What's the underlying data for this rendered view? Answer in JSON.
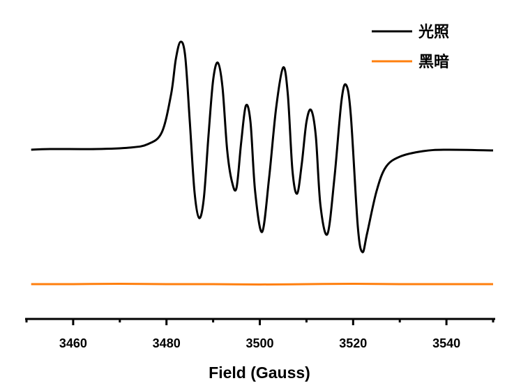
{
  "chart_data": {
    "type": "line",
    "title": "",
    "xlabel": "Field (Gauss)",
    "ylabel": "",
    "xlim": [
      3450,
      3550
    ],
    "ylim": [
      -243,
      215
    ],
    "xticks": [
      3460,
      3480,
      3500,
      3520,
      3540
    ],
    "xtick_labels": [
      "3460",
      "3480",
      "3500",
      "3520",
      "3540"
    ],
    "minor_xticks": [
      3450,
      3470,
      3490,
      3510,
      3530,
      3550
    ],
    "grid": false,
    "legend_position": "top-right",
    "series": [
      {
        "name": "光照",
        "color": "#000000",
        "points": [
          [
            3451,
            0
          ],
          [
            3455,
            1
          ],
          [
            3465,
            1
          ],
          [
            3472,
            3
          ],
          [
            3476,
            8
          ],
          [
            3479,
            25
          ],
          [
            3481,
            80
          ],
          [
            3482,
            130
          ],
          [
            3483,
            155
          ],
          [
            3484,
            135
          ],
          [
            3485,
            40
          ],
          [
            3486,
            -60
          ],
          [
            3487,
            -98
          ],
          [
            3488,
            -70
          ],
          [
            3489,
            20
          ],
          [
            3490,
            100
          ],
          [
            3491,
            125
          ],
          [
            3492,
            90
          ],
          [
            3493,
            0
          ],
          [
            3494,
            -45
          ],
          [
            3495,
            -55
          ],
          [
            3496,
            10
          ],
          [
            3497,
            63
          ],
          [
            3498,
            40
          ],
          [
            3499,
            -60
          ],
          [
            3500.5,
            -118
          ],
          [
            3502,
            -40
          ],
          [
            3503.5,
            60
          ],
          [
            3505,
            118
          ],
          [
            3506,
            80
          ],
          [
            3507,
            -30
          ],
          [
            3508,
            -63
          ],
          [
            3509,
            -20
          ],
          [
            3510,
            40
          ],
          [
            3511,
            57
          ],
          [
            3512,
            20
          ],
          [
            3513,
            -80
          ],
          [
            3514.5,
            -121
          ],
          [
            3516,
            -40
          ],
          [
            3517.5,
            70
          ],
          [
            3518.5,
            93
          ],
          [
            3519.5,
            50
          ],
          [
            3521,
            -110
          ],
          [
            3522,
            -147
          ],
          [
            3523,
            -120
          ],
          [
            3525,
            -60
          ],
          [
            3527,
            -25
          ],
          [
            3530,
            -10
          ],
          [
            3535,
            -2
          ],
          [
            3540,
            0
          ],
          [
            3550,
            -1
          ]
        ]
      },
      {
        "name": "黑暗",
        "color": "#FF7F0E",
        "points": [
          [
            3451,
            -193
          ],
          [
            3460,
            -193
          ],
          [
            3470,
            -192.5
          ],
          [
            3480,
            -193
          ],
          [
            3490,
            -193
          ],
          [
            3500,
            -193.5
          ],
          [
            3510,
            -193
          ],
          [
            3520,
            -192.5
          ],
          [
            3530,
            -193
          ],
          [
            3540,
            -193
          ],
          [
            3550,
            -193
          ]
        ]
      }
    ]
  }
}
